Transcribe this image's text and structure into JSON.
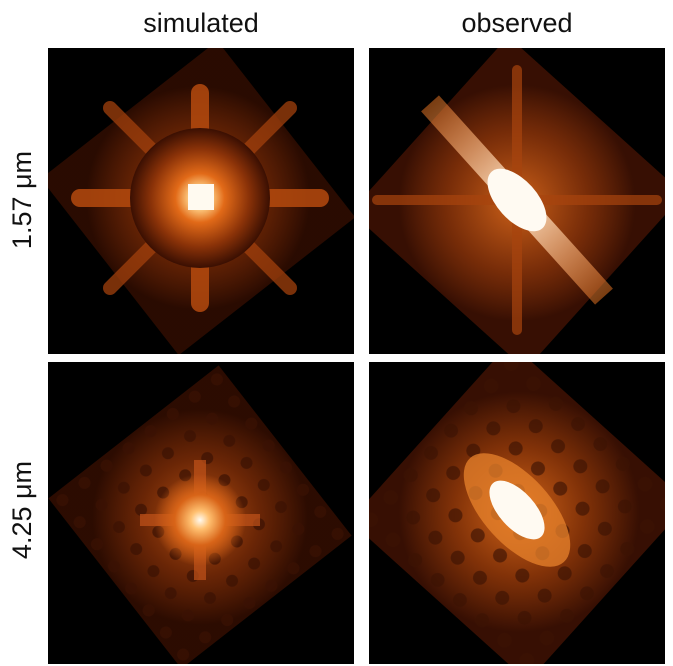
{
  "columns": [
    "simulated",
    "observed"
  ],
  "rows": [
    "1.57 μm",
    "4.25 μm"
  ],
  "colormap": {
    "background": "#000000",
    "dark": "#3a0f02",
    "mid": "#8a3208",
    "bright": "#e0701a",
    "peak": "#fff6e6"
  }
}
